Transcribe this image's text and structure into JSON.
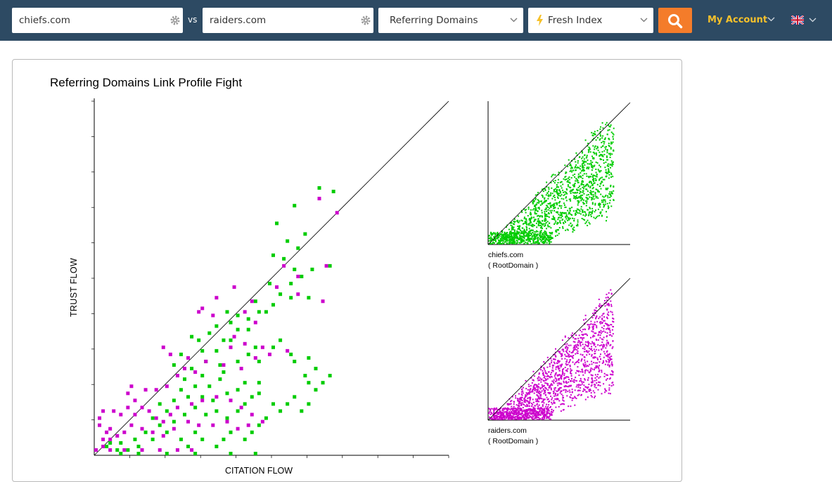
{
  "search": {
    "domain1": "chiefs.com",
    "domain2": "raiders.com",
    "vs_label": "vs",
    "mode_select": "Referring Domains",
    "index_select": "Fresh Index",
    "search_icon": "search-icon",
    "settings_icon": "gear-icon"
  },
  "header": {
    "account_label": "My Account",
    "language_icon": "uk-flag-icon"
  },
  "colors": {
    "topbar": "#2d4a63",
    "search_button": "#f47c2a",
    "account_text": "#f6c12b",
    "series1": "#00cc00",
    "series2": "#cc00cc"
  },
  "chart": {
    "title": "Referring Domains Link Profile Fight",
    "ylabel": "TRUST FLOW",
    "xlabel": "CITATION FLOW"
  },
  "chart_data": [
    {
      "type": "scatter",
      "title": "Referring Domains Link Profile Fight",
      "xlabel": "CITATION FLOW",
      "ylabel": "TRUST FLOW",
      "xlim": [
        0,
        100
      ],
      "ylim": [
        0,
        100
      ],
      "diagonal": true,
      "series": [
        {
          "name": "chiefs.com",
          "color": "#00cc00",
          "points": [
            [
              63,
              75
            ],
            [
              67,
              74
            ],
            [
              56,
              70
            ],
            [
              51,
              65
            ],
            [
              54,
              60
            ],
            [
              59,
              62
            ],
            [
              57,
              58
            ],
            [
              53,
              55
            ],
            [
              50,
              56
            ],
            [
              61,
              52
            ],
            [
              66,
              53
            ],
            [
              56,
              52
            ],
            [
              58,
              50
            ],
            [
              55,
              48
            ],
            [
              49,
              48
            ],
            [
              52,
              45
            ],
            [
              55,
              44
            ],
            [
              60,
              44
            ],
            [
              50,
              42
            ],
            [
              48,
              40
            ],
            [
              45,
              43
            ],
            [
              46,
              40
            ],
            [
              43,
              38
            ],
            [
              40,
              39
            ],
            [
              43,
              35
            ],
            [
              37,
              40
            ],
            [
              38,
              37
            ],
            [
              40,
              35
            ],
            [
              36,
              32
            ],
            [
              34,
              36
            ],
            [
              32,
              34
            ],
            [
              29,
              32
            ],
            [
              30,
              29
            ],
            [
              27,
              33
            ],
            [
              34,
              29
            ],
            [
              38,
              32
            ],
            [
              31,
              26
            ],
            [
              35,
              25
            ],
            [
              27,
              24
            ],
            [
              30,
              22
            ],
            [
              24,
              28
            ],
            [
              22,
              25
            ],
            [
              25,
              21
            ],
            [
              28,
              19
            ],
            [
              32,
              19
            ],
            [
              35,
              21
            ],
            [
              36,
              23
            ],
            [
              40,
              26
            ],
            [
              43,
              28
            ],
            [
              45,
              30
            ],
            [
              46,
              26
            ],
            [
              50,
              30
            ],
            [
              52,
              32
            ],
            [
              55,
              28
            ],
            [
              56,
              26
            ],
            [
              60,
              27
            ],
            [
              59,
              22
            ],
            [
              46,
              20
            ],
            [
              42,
              20
            ],
            [
              40,
              18
            ],
            [
              37,
              17
            ],
            [
              33,
              15
            ],
            [
              30,
              16
            ],
            [
              26,
              16
            ],
            [
              24,
              18
            ],
            [
              22,
              15
            ],
            [
              20,
              12
            ],
            [
              18,
              14
            ],
            [
              16,
              10
            ],
            [
              18,
              8
            ],
            [
              22,
              9
            ],
            [
              25,
              11
            ],
            [
              28,
              13
            ],
            [
              31,
              11
            ],
            [
              34,
              12
            ],
            [
              37,
              10
            ],
            [
              40,
              12
            ],
            [
              42,
              14
            ],
            [
              44,
              16
            ],
            [
              46,
              17
            ],
            [
              50,
              14
            ],
            [
              58,
              12
            ],
            [
              60,
              14
            ],
            [
              62,
              18
            ],
            [
              64,
              20
            ],
            [
              66,
              22
            ],
            [
              62,
              24
            ],
            [
              60,
              20
            ],
            [
              56,
              16
            ],
            [
              54,
              14
            ],
            [
              52,
              12
            ],
            [
              48,
              10
            ],
            [
              46,
              8
            ],
            [
              44,
              6
            ],
            [
              42,
              4
            ],
            [
              38,
              6
            ],
            [
              36,
              4
            ],
            [
              34,
              2
            ],
            [
              30,
              4
            ],
            [
              28,
              6
            ],
            [
              26,
              2
            ],
            [
              24,
              4
            ],
            [
              20,
              6
            ],
            [
              16,
              4
            ],
            [
              12,
              2
            ],
            [
              9,
              1
            ],
            [
              11,
              4
            ],
            [
              14,
              6
            ],
            [
              7,
              3
            ],
            [
              6,
              1
            ],
            [
              4,
              3
            ],
            [
              3,
              2
            ],
            [
              45,
              0
            ],
            [
              38,
              0
            ],
            [
              28,
              0
            ],
            [
              20,
              0
            ],
            [
              12,
              0
            ],
            [
              7,
              0
            ]
          ]
        },
        {
          "name": "raiders.com",
          "color": "#cc00cc",
          "points": [
            [
              68,
              68
            ],
            [
              63,
              72
            ],
            [
              65,
              53
            ],
            [
              64,
              43
            ],
            [
              57,
              50
            ],
            [
              53,
              53
            ],
            [
              51,
              47
            ],
            [
              57,
              45
            ],
            [
              44,
              43
            ],
            [
              39,
              47
            ],
            [
              34,
              44
            ],
            [
              30,
              41
            ],
            [
              42,
              40
            ],
            [
              45,
              37
            ],
            [
              33,
              39
            ],
            [
              29,
              40
            ],
            [
              39,
              33
            ],
            [
              38,
              30
            ],
            [
              42,
              31
            ],
            [
              19,
              30
            ],
            [
              21,
              28
            ],
            [
              26,
              27
            ],
            [
              47,
              30
            ],
            [
              49,
              28
            ],
            [
              54,
              29
            ],
            [
              45,
              27
            ],
            [
              41,
              24
            ],
            [
              36,
              25
            ],
            [
              31,
              26
            ],
            [
              28,
              23
            ],
            [
              25,
              24
            ],
            [
              23,
              22
            ],
            [
              20,
              19
            ],
            [
              17,
              18
            ],
            [
              14,
              18
            ],
            [
              10,
              19
            ],
            [
              9,
              17
            ],
            [
              11,
              15
            ],
            [
              13,
              13
            ],
            [
              15,
              12
            ],
            [
              17,
              10
            ],
            [
              19,
              9
            ],
            [
              21,
              11
            ],
            [
              23,
              13
            ],
            [
              27,
              14
            ],
            [
              30,
              15
            ],
            [
              34,
              16
            ],
            [
              38,
              15
            ],
            [
              41,
              13
            ],
            [
              44,
              11
            ],
            [
              47,
              9
            ],
            [
              43,
              8
            ],
            [
              40,
              7
            ],
            [
              37,
              9
            ],
            [
              33,
              8
            ],
            [
              29,
              8
            ],
            [
              26,
              9
            ],
            [
              22,
              7
            ],
            [
              19,
              5
            ],
            [
              16,
              6
            ],
            [
              13,
              7
            ],
            [
              10,
              8
            ],
            [
              8,
              6
            ],
            [
              6,
              5
            ],
            [
              4,
              4
            ],
            [
              2,
              4
            ],
            [
              1,
              8
            ],
            [
              1,
              10
            ],
            [
              2,
              12
            ],
            [
              5,
              12
            ],
            [
              7,
              11
            ],
            [
              9,
              13
            ],
            [
              11,
              11
            ],
            [
              4,
              7
            ],
            [
              3,
              6
            ],
            [
              2,
              2
            ],
            [
              0,
              1
            ],
            [
              4,
              1
            ],
            [
              8,
              1
            ],
            [
              13,
              1
            ],
            [
              18,
              1
            ],
            [
              23,
              1
            ],
            [
              27,
              1
            ]
          ]
        }
      ]
    },
    {
      "type": "scatter",
      "caption": "chiefs.com\n( RootDomain )",
      "caption_line1": "chiefs.com",
      "caption_line2": "( RootDomain )",
      "xlim": [
        0,
        100
      ],
      "ylim": [
        0,
        100
      ],
      "diagonal": true,
      "series": [
        {
          "name": "chiefs.com",
          "color": "#00cc00",
          "distribution": "dense cloud below diagonal, max TF ~95"
        }
      ]
    },
    {
      "type": "scatter",
      "caption": "raiders.com\n( RootDomain )",
      "caption_line1": "raiders.com",
      "caption_line2": "( RootDomain )",
      "xlim": [
        0,
        100
      ],
      "ylim": [
        0,
        100
      ],
      "diagonal": true,
      "series": [
        {
          "name": "raiders.com",
          "color": "#cc00cc",
          "distribution": "dense cloud below diagonal, max TF ~95"
        }
      ]
    }
  ]
}
